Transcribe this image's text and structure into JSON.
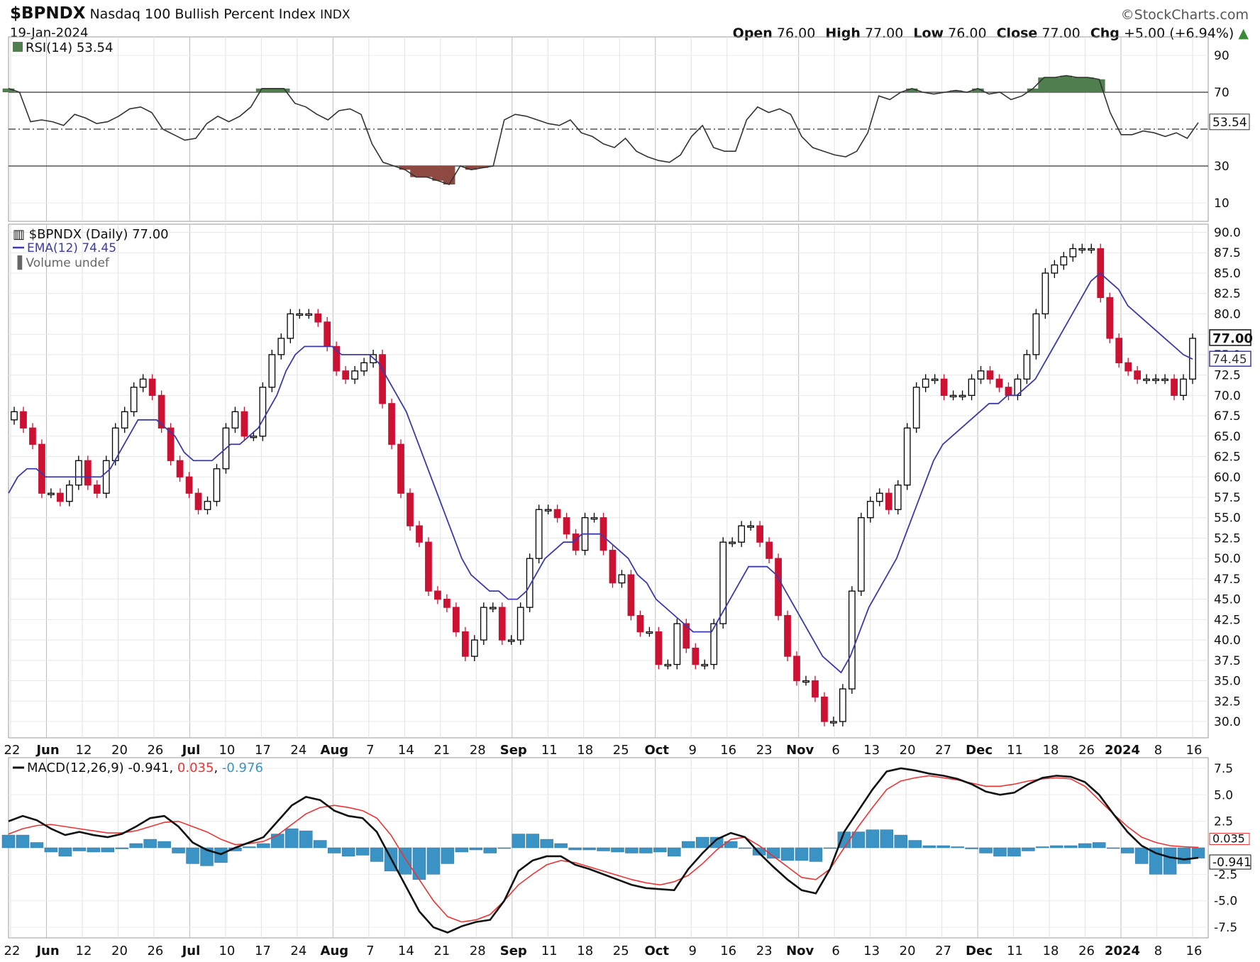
{
  "header": {
    "symbol": "$BPNDX",
    "name": "Nasdaq 100 Bullish Percent Index",
    "exchange": "INDX",
    "date": "19-Jan-2024",
    "brand": "©StockCharts.com",
    "open_label": "Open",
    "open": "76.00",
    "high_label": "High",
    "high": "77.00",
    "low_label": "Low",
    "low": "76.00",
    "close_label": "Close",
    "close": "77.00",
    "chg_label": "Chg",
    "chg": "+5.00 (+6.94%)"
  },
  "colors": {
    "up": "#000000",
    "down": "#cc1133",
    "ema": "#3a3aaa",
    "rsi_over": "#4f7f4f",
    "rsi_under": "#8e4a42",
    "macd_line": "#111111",
    "signal_line": "#ee3333",
    "histogram": "#3a93c4"
  },
  "chart_data": [
    {
      "type": "line",
      "panel": "rsi",
      "legend": "RSI(14) 53.54",
      "last_value_label": "53.54",
      "y_ticks": [
        "90",
        "70",
        "30",
        "10"
      ],
      "ylim": [
        0,
        100
      ],
      "reference_lines": [
        30,
        50,
        70
      ],
      "series": [
        {
          "name": "RSI(14)",
          "values": [
            72,
            70,
            54,
            55,
            54,
            52,
            58,
            56,
            53,
            54,
            57,
            61,
            62,
            59,
            50,
            47,
            44,
            45,
            53,
            57,
            54,
            57,
            62,
            72,
            72,
            72,
            64,
            62,
            58,
            55,
            60,
            61,
            58,
            42,
            32,
            30,
            28,
            24,
            24,
            22,
            20,
            30,
            28,
            29,
            30,
            55,
            58,
            57,
            55,
            53,
            52,
            55,
            48,
            46,
            42,
            40,
            45,
            38,
            35,
            33,
            32,
            36,
            46,
            52,
            40,
            38,
            38,
            55,
            62,
            59,
            61,
            58,
            46,
            40,
            38,
            36,
            35,
            38,
            48,
            68,
            66,
            70,
            72,
            70,
            69,
            70,
            71,
            70,
            72,
            69,
            70,
            66,
            68,
            72,
            78,
            78,
            79,
            78,
            78,
            77,
            59,
            47,
            47,
            49,
            48,
            46,
            48,
            45,
            53.54
          ]
        }
      ],
      "x_ticks": [
        "22",
        "Jun",
        "12",
        "20",
        "26",
        "Jul",
        "10",
        "17",
        "24",
        "Aug",
        "7",
        "14",
        "21",
        "28",
        "Sep",
        "11",
        "18",
        "25",
        "Oct",
        "9",
        "16",
        "23",
        "Nov",
        "6",
        "13",
        "20",
        "27",
        "Dec",
        "11",
        "18",
        "26",
        "2024",
        "8",
        "16"
      ]
    },
    {
      "type": "candlestick",
      "panel": "price",
      "legend": "$BPNDX (Daily) 77.00",
      "ema_legend": "EMA(12) 74.45",
      "volume_legend": "Volume undef",
      "last_close_label": "77.00",
      "last_ema_label": "74.45",
      "y_ticks": [
        "90.0",
        "87.5",
        "85.0",
        "82.5",
        "80.0",
        "77.5",
        "75.0",
        "72.5",
        "70.0",
        "67.5",
        "65.0",
        "62.5",
        "60.0",
        "57.5",
        "55.0",
        "52.5",
        "50.0",
        "47.5",
        "45.0",
        "42.5",
        "40.0",
        "37.5",
        "35.0",
        "32.5",
        "30.0"
      ],
      "ylim": [
        28,
        91
      ],
      "x_ticks": [
        "22",
        "Jun",
        "12",
        "20",
        "26",
        "Jul",
        "10",
        "17",
        "24",
        "Aug",
        "7",
        "14",
        "21",
        "28",
        "Sep",
        "11",
        "18",
        "25",
        "Oct",
        "9",
        "16",
        "23",
        "Nov",
        "6",
        "13",
        "20",
        "27",
        "Dec",
        "11",
        "18",
        "26",
        "2024",
        "8",
        "16"
      ],
      "closes": [
        68,
        66,
        64,
        58,
        58,
        57,
        59,
        62,
        59,
        58,
        62,
        66,
        68,
        71,
        72,
        70,
        66,
        62,
        60,
        58,
        56,
        57,
        61,
        66,
        68,
        65,
        65,
        71,
        75,
        77,
        80,
        80,
        80,
        79,
        76,
        73,
        72,
        73,
        74,
        75,
        69,
        64,
        58,
        54,
        52,
        46,
        45,
        44,
        41,
        38,
        40,
        44,
        44,
        40,
        40,
        44,
        50,
        56,
        56,
        55,
        53,
        51,
        55,
        55,
        51,
        47,
        48,
        43,
        41,
        41,
        37,
        37,
        42,
        39,
        37,
        37,
        42,
        52,
        52,
        54,
        54,
        52,
        50,
        43,
        38,
        35,
        35,
        33,
        30,
        30,
        34,
        46,
        55,
        57,
        58,
        56,
        59,
        66,
        71,
        72,
        72,
        70,
        70,
        70,
        72,
        73,
        72,
        71,
        70,
        72,
        75,
        80,
        85,
        86,
        87,
        88,
        88,
        88,
        82,
        77,
        74,
        73,
        72,
        72,
        72,
        72,
        70,
        72,
        77
      ],
      "ema": [
        58,
        60,
        61,
        61,
        60,
        60,
        60,
        60,
        60,
        60,
        60,
        61,
        63,
        65,
        67,
        67,
        67,
        66,
        65,
        63,
        62,
        62,
        62,
        63,
        64,
        64,
        65,
        66,
        68,
        70,
        73,
        75,
        76,
        76,
        76,
        76,
        75,
        75,
        75,
        75,
        74,
        72,
        70,
        68,
        65,
        62,
        59,
        56,
        53,
        50,
        48,
        47,
        46,
        46,
        45,
        45,
        46,
        48,
        50,
        51,
        52,
        52,
        53,
        53,
        53,
        52,
        51,
        50,
        48,
        47,
        45,
        44,
        43,
        42,
        41,
        41,
        41,
        43,
        45,
        47,
        49,
        49,
        49,
        48,
        46,
        44,
        42,
        40,
        38,
        37,
        36,
        38,
        41,
        44,
        46,
        48,
        50,
        53,
        56,
        59,
        62,
        64,
        65,
        66,
        67,
        68,
        69,
        69,
        70,
        70,
        71,
        72,
        74,
        76,
        78,
        80,
        82,
        84,
        85,
        84,
        83,
        81,
        80,
        79,
        78,
        77,
        76,
        75,
        74.45
      ]
    },
    {
      "type": "line",
      "panel": "macd",
      "legend_prefix": "MACD(12,26,9)",
      "macd_value": "-0.941",
      "signal_value": "0.035",
      "hist_value": "-0.976",
      "macd_label": "-0.941",
      "signal_label": "0.035",
      "y_ticks": [
        "7.5",
        "5.0",
        "2.5",
        "0.0",
        "-2.5",
        "-5.0",
        "-7.5"
      ],
      "ylim": [
        -8.5,
        8.5
      ],
      "x_ticks": [
        "22",
        "Jun",
        "12",
        "20",
        "26",
        "Jul",
        "10",
        "17",
        "24",
        "Aug",
        "7",
        "14",
        "21",
        "28",
        "Sep",
        "11",
        "18",
        "25",
        "Oct",
        "9",
        "16",
        "23",
        "Nov",
        "6",
        "13",
        "20",
        "27",
        "Dec",
        "11",
        "18",
        "26",
        "2024",
        "8",
        "16"
      ],
      "series": [
        {
          "name": "MACD",
          "values": [
            2.5,
            3,
            2.6,
            1.8,
            1.2,
            1.5,
            1.2,
            1,
            1.3,
            2,
            2.8,
            3,
            2,
            0.5,
            -0.2,
            -0.6,
            0,
            0.5,
            1,
            2.5,
            4,
            4.8,
            4.5,
            3.5,
            3,
            2.8,
            1.5,
            -1,
            -3.5,
            -6,
            -7.5,
            -8,
            -7.4,
            -7,
            -6.8,
            -5,
            -2.2,
            -1.2,
            -0.8,
            -0.8,
            -1.6,
            -2,
            -2.5,
            -3,
            -3.5,
            -3.8,
            -3.9,
            -4,
            -2,
            -0.5,
            0.8,
            1.4,
            1,
            -0.5,
            -1.8,
            -3,
            -4,
            -4.3,
            -2,
            1.5,
            3.5,
            5.5,
            7.2,
            7.5,
            7.3,
            7,
            6.8,
            6.5,
            6,
            5.3,
            5,
            5.2,
            6,
            6.6,
            6.8,
            6.7,
            6.2,
            5,
            3.2,
            1.5,
            0.2,
            -0.5,
            -0.9,
            -1.1,
            -0.941
          ]
        },
        {
          "name": "Signal",
          "values": [
            1.3,
            1.8,
            2.1,
            2.2,
            2,
            1.8,
            1.6,
            1.4,
            1.4,
            1.6,
            2,
            2.4,
            2.5,
            2,
            1.5,
            0.8,
            0.3,
            0.4,
            0.6,
            1.2,
            2.2,
            3.2,
            3.8,
            4,
            3.8,
            3.5,
            2.8,
            1.2,
            -1,
            -3,
            -5,
            -6.5,
            -7,
            -6.8,
            -6.3,
            -5,
            -3.5,
            -2.5,
            -1.6,
            -1.2,
            -1.4,
            -1.8,
            -2.2,
            -2.6,
            -3,
            -3.3,
            -3.5,
            -3.2,
            -2.6,
            -1.5,
            -0.2,
            0.8,
            1,
            0.2,
            -0.8,
            -1.8,
            -2.8,
            -3,
            -2,
            0,
            2,
            3.8,
            5.5,
            6.3,
            6.6,
            6.8,
            6.6,
            6.4,
            6.1,
            5.8,
            5.8,
            6,
            6.3,
            6.5,
            6.6,
            6.5,
            5.8,
            4.5,
            3.2,
            2,
            1,
            0.5,
            0.2,
            0.1,
            0.035
          ]
        }
      ],
      "histogram": [
        1.2,
        1.2,
        0.5,
        -0.4,
        -0.8,
        -0.3,
        -0.4,
        -0.4,
        -0.1,
        0.4,
        0.8,
        0.6,
        -0.5,
        -1.5,
        -1.7,
        -1.4,
        -0.3,
        0.1,
        0.4,
        1.3,
        1.8,
        1.6,
        0.7,
        -0.5,
        -0.8,
        -0.7,
        -1.3,
        -2.2,
        -2.5,
        -3,
        -2.5,
        -1.5,
        -0.4,
        -0.2,
        -0.5,
        0,
        1.3,
        1.3,
        0.8,
        0.4,
        -0.2,
        -0.2,
        -0.3,
        -0.4,
        -0.5,
        -0.5,
        -0.4,
        -0.8,
        0.6,
        1,
        1,
        0.6,
        0,
        -0.7,
        -1,
        -1.2,
        -1.2,
        -1.3,
        0,
        1.5,
        1.5,
        1.7,
        1.7,
        1.2,
        0.7,
        0.2,
        0.2,
        0.1,
        -0.1,
        -0.5,
        -0.8,
        -0.8,
        -0.3,
        0.1,
        0.2,
        0.2,
        0.4,
        0.5,
        0,
        -0.5,
        -1.5,
        -2.5,
        -2.5,
        -1.5,
        -0.976
      ]
    }
  ]
}
